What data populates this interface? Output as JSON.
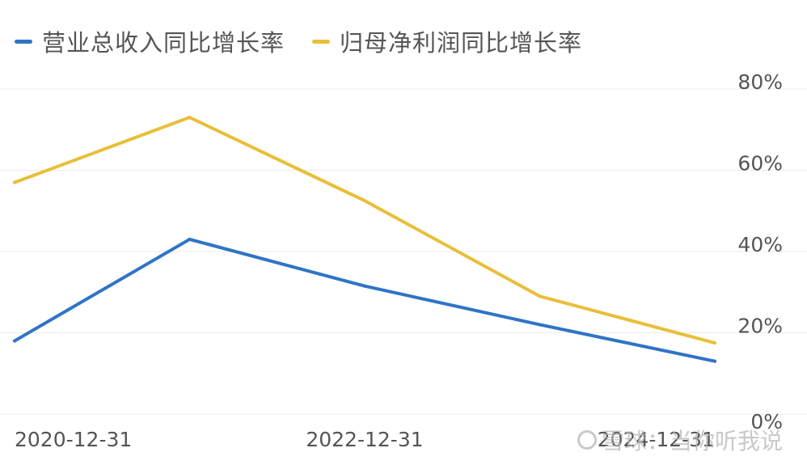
{
  "chart_data": {
    "type": "line",
    "x_ticks": [
      "2020-12-31",
      "2022-12-31",
      "2024-12-31"
    ],
    "x": [
      "2020-12-31",
      "2021-12-31",
      "2022-12-31",
      "2023-12-31",
      "2024-12-31"
    ],
    "series": [
      {
        "name": "营业总收入同比增长率",
        "color": "#2f74c6",
        "values": [
          18,
          43,
          31.5,
          22,
          13
        ]
      },
      {
        "name": "归母净利润同比增长率",
        "color": "#e8bf3a",
        "values": [
          57,
          73,
          52.5,
          29,
          17.5
        ]
      }
    ],
    "ylim": [
      0,
      80
    ],
    "y_ticks": [
      "0%",
      "20%",
      "40%",
      "60%",
      "80%"
    ],
    "y_tick_values": [
      0,
      20,
      40,
      60,
      80
    ],
    "legend_position": "top-left",
    "y_axis_side": "right",
    "grid": true
  },
  "watermark": {
    "text": "雪球：当你听我说",
    "icon": "snowball-icon"
  }
}
